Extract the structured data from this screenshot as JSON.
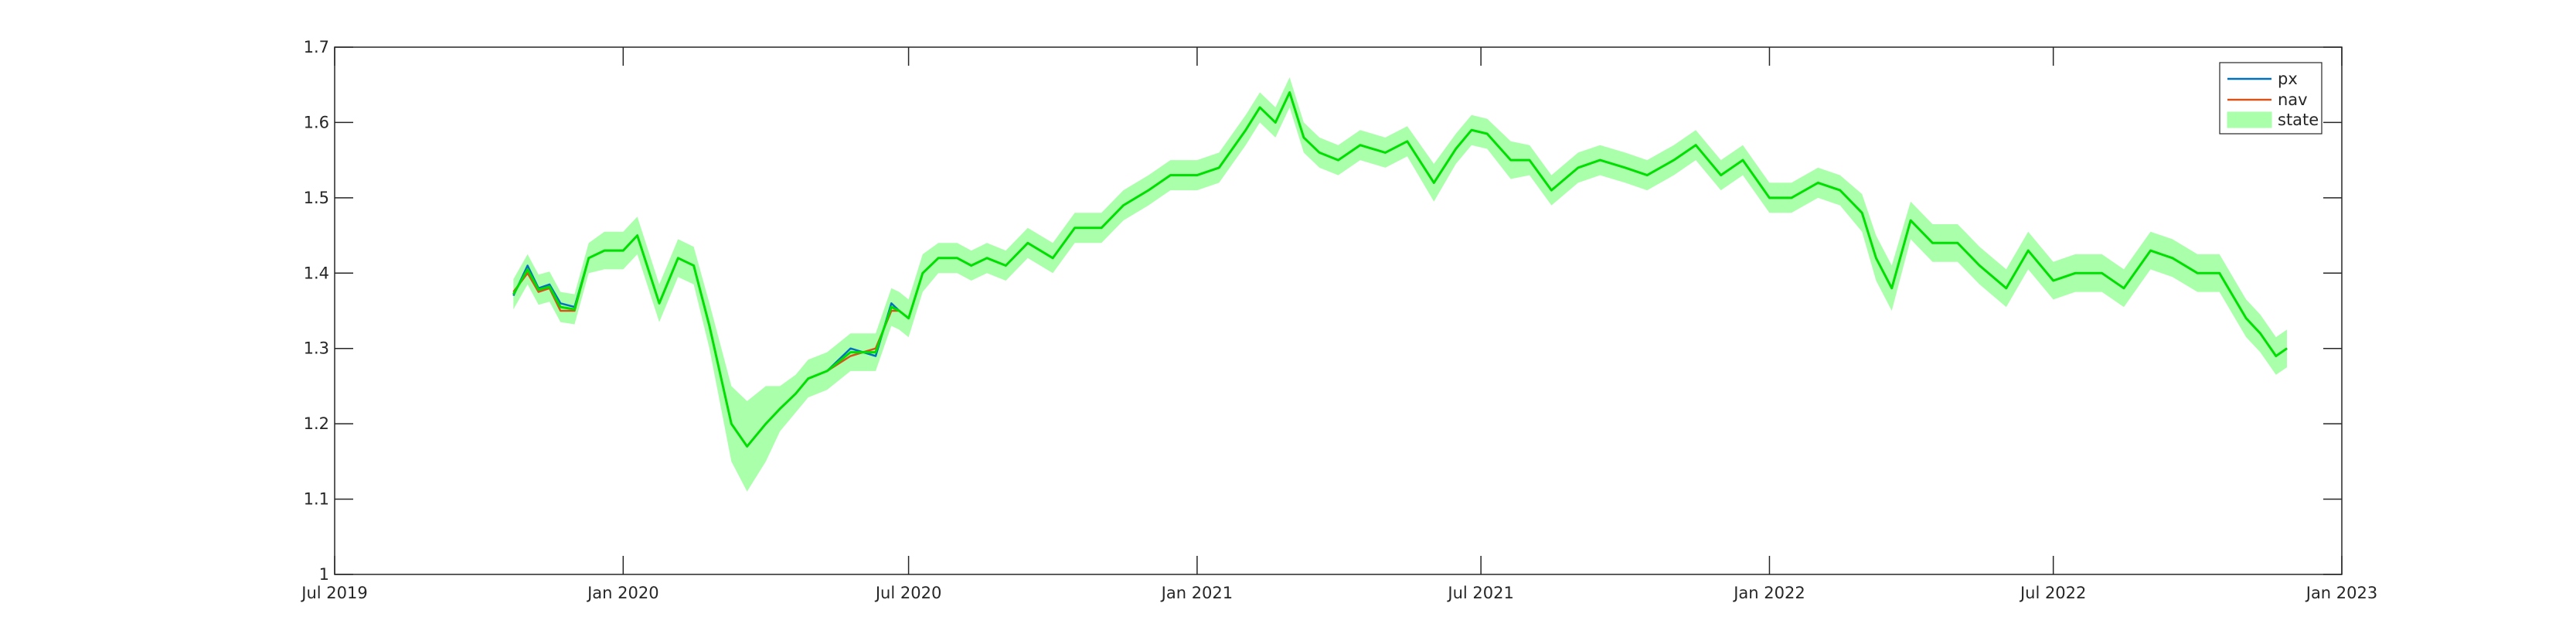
{
  "chart_data": {
    "type": "line",
    "title": "",
    "xlabel": "",
    "ylabel": "",
    "grid": false,
    "legend_position": "top-right",
    "xlim": [
      "2019-07-01",
      "2023-01-01"
    ],
    "ylim": [
      1.0,
      1.7
    ],
    "x_ticks": [
      "2019-07-01",
      "2020-01-01",
      "2020-07-01",
      "2021-01-01",
      "2021-07-01",
      "2022-01-01",
      "2022-07-01",
      "2023-01-01"
    ],
    "x_tick_labels": [
      "Jul 2019",
      "Jan 2020",
      "Jul 2020",
      "Jan 2021",
      "Jul 2021",
      "Jan 2022",
      "Jul 2022",
      "Jan 2023"
    ],
    "y_ticks": [
      1.0,
      1.1,
      1.2,
      1.3,
      1.4,
      1.5,
      1.6,
      1.7
    ],
    "y_tick_labels": [
      "1",
      "1.1",
      "1.2",
      "1.3",
      "1.4",
      "1.5",
      "1.6",
      "1.7"
    ],
    "series": [
      {
        "name": "px",
        "color": "#0072BD",
        "style": "line",
        "x": [
          "2019-10-23",
          "2019-11-01",
          "2019-11-08",
          "2019-11-15",
          "2019-11-22",
          "2019-12-01",
          "2019-12-10",
          "2019-12-20",
          "2020-01-01",
          "2020-01-10",
          "2020-01-24",
          "2020-02-05",
          "2020-02-15",
          "2020-02-25",
          "2020-03-10",
          "2020-03-20",
          "2020-04-01",
          "2020-04-10",
          "2020-04-20",
          "2020-04-28",
          "2020-05-10",
          "2020-05-25",
          "2020-06-10",
          "2020-06-20",
          "2020-06-25",
          "2020-07-01",
          "2020-07-10",
          "2020-07-20",
          "2020-08-01",
          "2020-08-10",
          "2020-08-20",
          "2020-09-01",
          "2020-09-15",
          "2020-10-01",
          "2020-10-15",
          "2020-11-01",
          "2020-11-15",
          "2020-12-01",
          "2020-12-15",
          "2021-01-01",
          "2021-01-15",
          "2021-02-01",
          "2021-02-10",
          "2021-02-20",
          "2021-03-01",
          "2021-03-10",
          "2021-03-20",
          "2021-04-01",
          "2021-04-15",
          "2021-05-01",
          "2021-05-15",
          "2021-06-01",
          "2021-06-15",
          "2021-06-25",
          "2021-07-05",
          "2021-07-20",
          "2021-08-01",
          "2021-08-15",
          "2021-09-01",
          "2021-09-15",
          "2021-10-01",
          "2021-10-15",
          "2021-11-01",
          "2021-11-15",
          "2021-12-01",
          "2021-12-15",
          "2022-01-01",
          "2022-01-15",
          "2022-02-01",
          "2022-02-15",
          "2022-03-01",
          "2022-03-10",
          "2022-03-20",
          "2022-04-01",
          "2022-04-15",
          "2022-05-01",
          "2022-05-15",
          "2022-06-01",
          "2022-06-15",
          "2022-07-01",
          "2022-07-15",
          "2022-08-01",
          "2022-08-15",
          "2022-09-01",
          "2022-09-15",
          "2022-10-01",
          "2022-10-15",
          "2022-11-01",
          "2022-11-10",
          "2022-11-20",
          "2022-11-27"
        ],
        "y": [
          1.37,
          1.41,
          1.38,
          1.385,
          1.36,
          1.355,
          1.42,
          1.43,
          1.43,
          1.45,
          1.36,
          1.42,
          1.41,
          1.33,
          1.2,
          1.17,
          1.2,
          1.22,
          1.24,
          1.26,
          1.27,
          1.3,
          1.29,
          1.36,
          1.35,
          1.34,
          1.4,
          1.42,
          1.42,
          1.41,
          1.42,
          1.41,
          1.44,
          1.42,
          1.46,
          1.46,
          1.49,
          1.51,
          1.53,
          1.53,
          1.54,
          1.59,
          1.62,
          1.6,
          1.64,
          1.58,
          1.56,
          1.55,
          1.57,
          1.56,
          1.575,
          1.52,
          1.565,
          1.59,
          1.585,
          1.55,
          1.55,
          1.51,
          1.54,
          1.55,
          1.54,
          1.53,
          1.55,
          1.57,
          1.53,
          1.55,
          1.5,
          1.5,
          1.52,
          1.51,
          1.48,
          1.42,
          1.38,
          1.47,
          1.44,
          1.44,
          1.41,
          1.38,
          1.43,
          1.39,
          1.4,
          1.4,
          1.38,
          1.43,
          1.42,
          1.4,
          1.4,
          1.34,
          1.32,
          1.29,
          1.3
        ]
      },
      {
        "name": "nav",
        "color": "#D95319",
        "style": "line",
        "x": [
          "2019-10-23",
          "2019-11-01",
          "2019-11-08",
          "2019-11-15",
          "2019-11-22",
          "2019-12-01",
          "2019-12-10",
          "2019-12-20",
          "2020-01-01",
          "2020-01-10",
          "2020-01-24",
          "2020-02-05",
          "2020-02-15",
          "2020-02-25",
          "2020-03-10",
          "2020-03-20",
          "2020-04-01",
          "2020-04-10",
          "2020-04-20",
          "2020-04-28",
          "2020-05-10",
          "2020-05-25",
          "2020-06-10",
          "2020-06-20",
          "2020-06-25",
          "2020-07-01",
          "2020-07-10",
          "2020-07-20",
          "2020-08-01",
          "2020-08-10",
          "2020-08-20",
          "2020-09-01",
          "2020-09-15",
          "2020-10-01",
          "2020-10-15",
          "2020-11-01",
          "2020-11-15",
          "2020-12-01",
          "2020-12-15",
          "2021-01-01",
          "2021-01-15",
          "2021-02-01",
          "2021-02-10",
          "2021-02-20",
          "2021-03-01",
          "2021-03-10",
          "2021-03-20",
          "2021-04-01",
          "2021-04-15",
          "2021-05-01",
          "2021-05-15",
          "2021-06-01",
          "2021-06-15",
          "2021-06-25",
          "2021-07-05",
          "2021-07-20",
          "2021-08-01",
          "2021-08-15",
          "2021-09-01",
          "2021-09-15",
          "2021-10-01",
          "2021-10-15",
          "2021-11-01",
          "2021-11-15",
          "2021-12-01",
          "2021-12-15",
          "2022-01-01",
          "2022-01-15",
          "2022-02-01",
          "2022-02-15",
          "2022-03-01",
          "2022-03-10",
          "2022-03-20",
          "2022-04-01",
          "2022-04-15",
          "2022-05-01",
          "2022-05-15",
          "2022-06-01",
          "2022-06-15",
          "2022-07-01",
          "2022-07-15",
          "2022-08-01",
          "2022-08-15",
          "2022-09-01",
          "2022-09-15",
          "2022-10-01",
          "2022-10-15",
          "2022-11-01",
          "2022-11-10",
          "2022-11-20",
          "2022-11-27"
        ],
        "y": [
          1.375,
          1.4,
          1.375,
          1.38,
          1.35,
          1.35,
          1.42,
          1.43,
          1.43,
          1.45,
          1.36,
          1.42,
          1.41,
          1.33,
          1.2,
          1.17,
          1.2,
          1.22,
          1.24,
          1.26,
          1.27,
          1.29,
          1.3,
          1.35,
          1.35,
          1.34,
          1.4,
          1.42,
          1.42,
          1.41,
          1.42,
          1.41,
          1.44,
          1.42,
          1.46,
          1.46,
          1.49,
          1.51,
          1.53,
          1.53,
          1.54,
          1.59,
          1.62,
          1.6,
          1.64,
          1.58,
          1.56,
          1.55,
          1.57,
          1.56,
          1.575,
          1.52,
          1.565,
          1.59,
          1.585,
          1.55,
          1.55,
          1.51,
          1.54,
          1.55,
          1.54,
          1.53,
          1.55,
          1.57,
          1.53,
          1.55,
          1.5,
          1.5,
          1.52,
          1.51,
          1.48,
          1.42,
          1.38,
          1.47,
          1.44,
          1.44,
          1.41,
          1.38,
          1.43,
          1.39,
          1.4,
          1.4,
          1.38,
          1.43,
          1.42,
          1.4,
          1.4,
          1.34,
          1.32,
          1.29,
          1.3
        ]
      },
      {
        "name": "state",
        "color": "#00E000",
        "fill_color": "#AAFFAA",
        "style": "line-with-band",
        "x": [
          "2019-10-23",
          "2019-11-01",
          "2019-11-08",
          "2019-11-15",
          "2019-11-22",
          "2019-12-01",
          "2019-12-10",
          "2019-12-20",
          "2020-01-01",
          "2020-01-10",
          "2020-01-24",
          "2020-02-05",
          "2020-02-15",
          "2020-02-25",
          "2020-03-10",
          "2020-03-20",
          "2020-04-01",
          "2020-04-10",
          "2020-04-20",
          "2020-04-28",
          "2020-05-10",
          "2020-05-25",
          "2020-06-10",
          "2020-06-20",
          "2020-06-25",
          "2020-07-01",
          "2020-07-10",
          "2020-07-20",
          "2020-08-01",
          "2020-08-10",
          "2020-08-20",
          "2020-09-01",
          "2020-09-15",
          "2020-10-01",
          "2020-10-15",
          "2020-11-01",
          "2020-11-15",
          "2020-12-01",
          "2020-12-15",
          "2021-01-01",
          "2021-01-15",
          "2021-02-01",
          "2021-02-10",
          "2021-02-20",
          "2021-03-01",
          "2021-03-10",
          "2021-03-20",
          "2021-04-01",
          "2021-04-15",
          "2021-05-01",
          "2021-05-15",
          "2021-06-01",
          "2021-06-15",
          "2021-06-25",
          "2021-07-05",
          "2021-07-20",
          "2021-08-01",
          "2021-08-15",
          "2021-09-01",
          "2021-09-15",
          "2021-10-01",
          "2021-10-15",
          "2021-11-01",
          "2021-11-15",
          "2021-12-01",
          "2021-12-15",
          "2022-01-01",
          "2022-01-15",
          "2022-02-01",
          "2022-02-15",
          "2022-03-01",
          "2022-03-10",
          "2022-03-20",
          "2022-04-01",
          "2022-04-15",
          "2022-05-01",
          "2022-05-15",
          "2022-06-01",
          "2022-06-15",
          "2022-07-01",
          "2022-07-15",
          "2022-08-01",
          "2022-08-15",
          "2022-09-01",
          "2022-09-15",
          "2022-10-01",
          "2022-10-15",
          "2022-11-01",
          "2022-11-10",
          "2022-11-20",
          "2022-11-27"
        ],
        "y": [
          1.372,
          1.405,
          1.378,
          1.382,
          1.355,
          1.352,
          1.42,
          1.43,
          1.43,
          1.45,
          1.36,
          1.42,
          1.41,
          1.33,
          1.2,
          1.17,
          1.2,
          1.22,
          1.24,
          1.26,
          1.27,
          1.295,
          1.295,
          1.355,
          1.35,
          1.34,
          1.4,
          1.42,
          1.42,
          1.41,
          1.42,
          1.41,
          1.44,
          1.42,
          1.46,
          1.46,
          1.49,
          1.51,
          1.53,
          1.53,
          1.54,
          1.59,
          1.62,
          1.6,
          1.64,
          1.58,
          1.56,
          1.55,
          1.57,
          1.56,
          1.575,
          1.52,
          1.565,
          1.59,
          1.585,
          1.55,
          1.55,
          1.51,
          1.54,
          1.55,
          1.54,
          1.53,
          1.55,
          1.57,
          1.53,
          1.55,
          1.5,
          1.5,
          1.52,
          1.51,
          1.48,
          1.42,
          1.38,
          1.47,
          1.44,
          1.44,
          1.41,
          1.38,
          1.43,
          1.39,
          1.4,
          1.4,
          1.38,
          1.43,
          1.42,
          1.4,
          1.4,
          1.34,
          1.32,
          1.29,
          1.3
        ],
        "band_halfwidth": [
          0.02,
          0.02,
          0.02,
          0.02,
          0.02,
          0.02,
          0.02,
          0.025,
          0.025,
          0.025,
          0.025,
          0.025,
          0.025,
          0.03,
          0.05,
          0.06,
          0.05,
          0.03,
          0.025,
          0.025,
          0.025,
          0.025,
          0.025,
          0.025,
          0.025,
          0.025,
          0.025,
          0.02,
          0.02,
          0.02,
          0.02,
          0.02,
          0.02,
          0.02,
          0.02,
          0.02,
          0.02,
          0.02,
          0.02,
          0.02,
          0.02,
          0.02,
          0.02,
          0.02,
          0.02,
          0.02,
          0.02,
          0.02,
          0.02,
          0.02,
          0.02,
          0.025,
          0.02,
          0.02,
          0.02,
          0.025,
          0.02,
          0.02,
          0.02,
          0.02,
          0.02,
          0.02,
          0.02,
          0.02,
          0.02,
          0.02,
          0.02,
          0.02,
          0.02,
          0.02,
          0.025,
          0.03,
          0.03,
          0.025,
          0.025,
          0.025,
          0.025,
          0.025,
          0.025,
          0.025,
          0.025,
          0.025,
          0.025,
          0.025,
          0.025,
          0.025,
          0.025,
          0.025,
          0.025,
          0.025,
          0.025
        ]
      }
    ]
  }
}
